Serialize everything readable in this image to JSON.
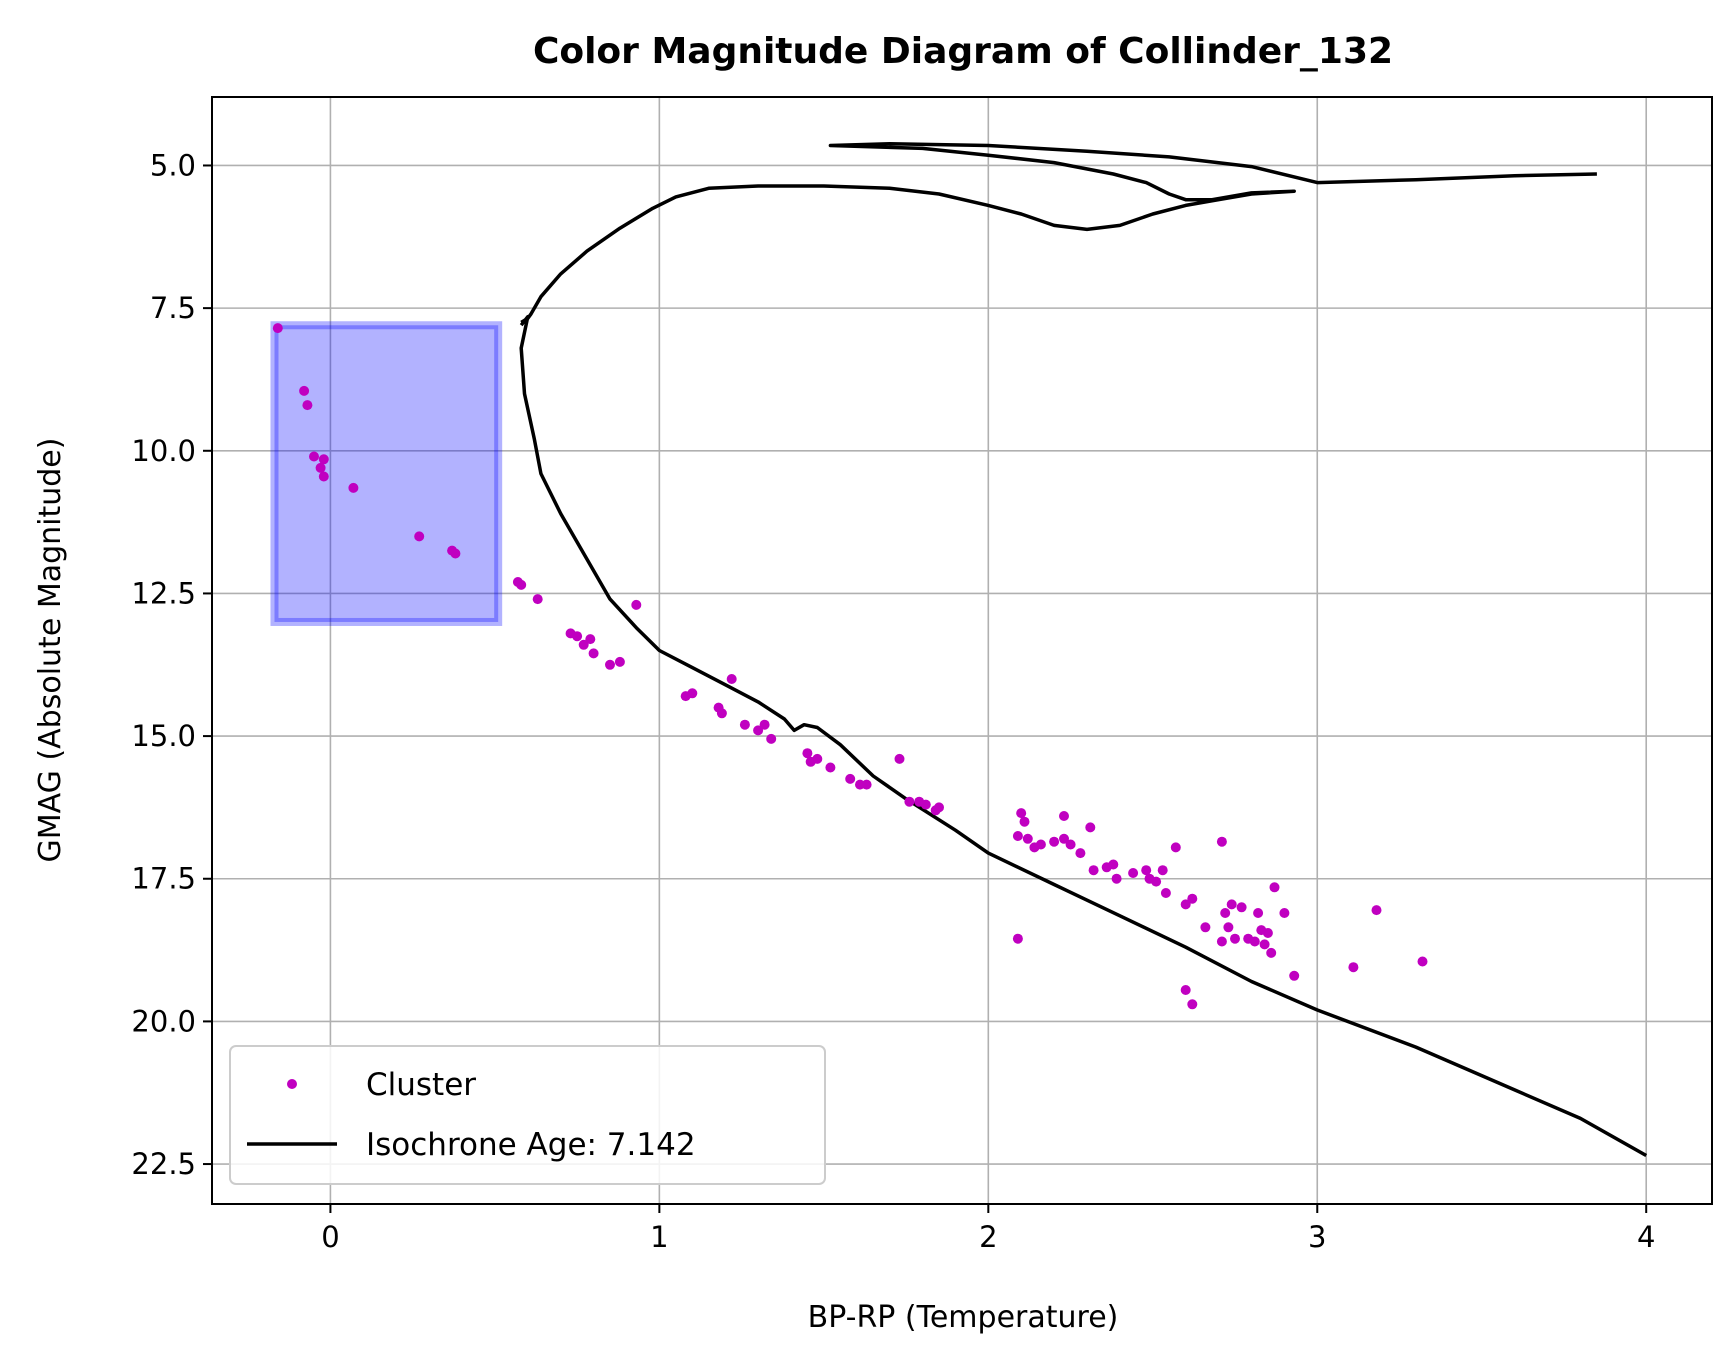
{
  "chart_data": {
    "type": "scatter",
    "title": "Color Magnitude Diagram of Collinder_132",
    "xlabel": "BP-RP (Temperature)",
    "ylabel": "GMAG (Absolute Magnitude)",
    "xlim": [
      -0.36,
      4.2
    ],
    "ylim": [
      23.2,
      3.8
    ],
    "y_inverted": true,
    "grid": true,
    "legend_position": "lower left",
    "xticks": [
      0,
      1,
      2,
      3,
      4
    ],
    "xtick_labels": [
      "0",
      "1",
      "2",
      "3",
      "4"
    ],
    "yticks": [
      5.0,
      7.5,
      10.0,
      12.5,
      15.0,
      17.5,
      20.0,
      22.5
    ],
    "ytick_labels": [
      "5.0",
      "7.5",
      "10.0",
      "12.5",
      "15.0",
      "17.5",
      "20.0",
      "22.5"
    ],
    "colors": {
      "cluster": "#c000c0",
      "isochrone": "#000000",
      "highlight_fill": "#0000ff",
      "highlight_opacity": 0.3
    },
    "highlight_region": {
      "x": [
        -0.17,
        0.51
      ],
      "y": [
        7.8,
        13.0
      ]
    },
    "series": [
      {
        "name": "Cluster",
        "kind": "scatter",
        "points": [
          [
            -0.16,
            7.85
          ],
          [
            -0.08,
            8.95
          ],
          [
            -0.07,
            9.2
          ],
          [
            -0.05,
            10.1
          ],
          [
            -0.03,
            10.3
          ],
          [
            -0.02,
            10.15
          ],
          [
            -0.02,
            10.45
          ],
          [
            0.07,
            10.65
          ],
          [
            0.27,
            11.5
          ],
          [
            0.37,
            11.75
          ],
          [
            0.38,
            11.8
          ],
          [
            0.57,
            12.3
          ],
          [
            0.58,
            12.35
          ],
          [
            0.63,
            12.6
          ],
          [
            0.73,
            13.2
          ],
          [
            0.75,
            13.25
          ],
          [
            0.77,
            13.4
          ],
          [
            0.79,
            13.3
          ],
          [
            0.8,
            13.55
          ],
          [
            0.85,
            13.75
          ],
          [
            0.88,
            13.7
          ],
          [
            0.93,
            12.7
          ],
          [
            1.08,
            14.3
          ],
          [
            1.1,
            14.25
          ],
          [
            1.18,
            14.5
          ],
          [
            1.19,
            14.6
          ],
          [
            1.22,
            14.0
          ],
          [
            1.26,
            14.8
          ],
          [
            1.3,
            14.9
          ],
          [
            1.32,
            14.8
          ],
          [
            1.34,
            15.05
          ],
          [
            1.45,
            15.3
          ],
          [
            1.46,
            15.45
          ],
          [
            1.48,
            15.4
          ],
          [
            1.52,
            15.55
          ],
          [
            1.58,
            15.75
          ],
          [
            1.61,
            15.85
          ],
          [
            1.63,
            15.85
          ],
          [
            1.73,
            15.4
          ],
          [
            1.76,
            16.15
          ],
          [
            1.79,
            16.15
          ],
          [
            1.81,
            16.2
          ],
          [
            1.84,
            16.3
          ],
          [
            1.85,
            16.25
          ],
          [
            2.09,
            16.75
          ],
          [
            2.1,
            16.35
          ],
          [
            2.11,
            16.5
          ],
          [
            2.12,
            16.8
          ],
          [
            2.14,
            16.95
          ],
          [
            2.16,
            16.9
          ],
          [
            2.2,
            16.85
          ],
          [
            2.23,
            16.4
          ],
          [
            2.23,
            16.8
          ],
          [
            2.25,
            16.9
          ],
          [
            2.28,
            17.05
          ],
          [
            2.31,
            16.6
          ],
          [
            2.32,
            17.35
          ],
          [
            2.36,
            17.3
          ],
          [
            2.38,
            17.25
          ],
          [
            2.39,
            17.5
          ],
          [
            2.44,
            17.4
          ],
          [
            2.48,
            17.35
          ],
          [
            2.49,
            17.5
          ],
          [
            2.51,
            17.55
          ],
          [
            2.53,
            17.35
          ],
          [
            2.54,
            17.75
          ],
          [
            2.57,
            16.95
          ],
          [
            2.6,
            17.95
          ],
          [
            2.62,
            17.85
          ],
          [
            2.66,
            18.35
          ],
          [
            2.71,
            16.85
          ],
          [
            2.71,
            18.6
          ],
          [
            2.72,
            18.1
          ],
          [
            2.73,
            18.35
          ],
          [
            2.74,
            17.95
          ],
          [
            2.75,
            18.55
          ],
          [
            2.77,
            18.0
          ],
          [
            2.79,
            18.55
          ],
          [
            2.81,
            18.6
          ],
          [
            2.82,
            18.1
          ],
          [
            2.83,
            18.4
          ],
          [
            2.84,
            18.65
          ],
          [
            2.85,
            18.45
          ],
          [
            2.86,
            18.8
          ],
          [
            2.87,
            17.65
          ],
          [
            2.9,
            18.1
          ],
          [
            2.93,
            19.2
          ],
          [
            3.11,
            19.05
          ],
          [
            3.18,
            18.05
          ],
          [
            3.32,
            18.95
          ],
          [
            2.09,
            18.55
          ],
          [
            2.6,
            19.45
          ],
          [
            2.62,
            19.7
          ]
        ]
      },
      {
        "name": "Isochrone Age: 7.142",
        "kind": "line",
        "points": [
          [
            0.58,
            7.75
          ],
          [
            0.6,
            7.68
          ],
          [
            0.61,
            7.6
          ],
          [
            0.64,
            7.3
          ],
          [
            0.7,
            6.9
          ],
          [
            0.78,
            6.5
          ],
          [
            0.88,
            6.1
          ],
          [
            0.98,
            5.75
          ],
          [
            1.05,
            5.55
          ],
          [
            1.15,
            5.4
          ],
          [
            1.3,
            5.36
          ],
          [
            1.5,
            5.36
          ],
          [
            1.7,
            5.4
          ],
          [
            1.85,
            5.5
          ],
          [
            2.0,
            5.7
          ],
          [
            2.1,
            5.85
          ],
          [
            2.2,
            6.05
          ],
          [
            2.3,
            6.12
          ],
          [
            2.4,
            6.05
          ],
          [
            2.5,
            5.85
          ],
          [
            2.6,
            5.7
          ],
          [
            2.7,
            5.6
          ],
          [
            2.8,
            5.5
          ],
          [
            2.93,
            5.45
          ],
          [
            2.8,
            5.48
          ],
          [
            2.68,
            5.6
          ],
          [
            2.6,
            5.6
          ],
          [
            2.55,
            5.5
          ],
          [
            2.48,
            5.3
          ],
          [
            2.38,
            5.15
          ],
          [
            2.2,
            4.95
          ],
          [
            2.0,
            4.82
          ],
          [
            1.8,
            4.7
          ],
          [
            1.52,
            4.65
          ],
          [
            1.7,
            4.62
          ],
          [
            2.0,
            4.65
          ],
          [
            2.3,
            4.75
          ],
          [
            2.55,
            4.85
          ],
          [
            2.8,
            5.02
          ],
          [
            3.0,
            5.3
          ],
          [
            3.3,
            5.25
          ],
          [
            3.6,
            5.18
          ],
          [
            3.85,
            5.15
          ]
        ],
        "continuation": [
          [
            0.58,
            7.8
          ],
          [
            0.6,
            7.65
          ],
          [
            0.58,
            8.2
          ],
          [
            0.59,
            9.0
          ],
          [
            0.62,
            9.8
          ],
          [
            0.64,
            10.4
          ],
          [
            0.7,
            11.1
          ],
          [
            0.78,
            11.9
          ],
          [
            0.85,
            12.6
          ],
          [
            0.93,
            13.1
          ],
          [
            1.0,
            13.5
          ],
          [
            1.1,
            13.8
          ],
          [
            1.2,
            14.1
          ],
          [
            1.3,
            14.4
          ],
          [
            1.38,
            14.7
          ],
          [
            1.41,
            14.9
          ],
          [
            1.44,
            14.8
          ],
          [
            1.48,
            14.85
          ],
          [
            1.55,
            15.15
          ],
          [
            1.65,
            15.7
          ],
          [
            1.75,
            16.1
          ],
          [
            1.9,
            16.65
          ],
          [
            2.0,
            17.05
          ],
          [
            2.2,
            17.6
          ],
          [
            2.4,
            18.15
          ],
          [
            2.6,
            18.7
          ],
          [
            2.8,
            19.3
          ],
          [
            3.0,
            19.8
          ],
          [
            3.3,
            20.45
          ],
          [
            3.6,
            21.2
          ],
          [
            3.8,
            21.7
          ],
          [
            4.0,
            22.35
          ]
        ]
      }
    ],
    "legend": [
      {
        "label": "Cluster",
        "marker": "dot"
      },
      {
        "label": "Isochrone Age: 7.142",
        "marker": "line"
      }
    ]
  }
}
